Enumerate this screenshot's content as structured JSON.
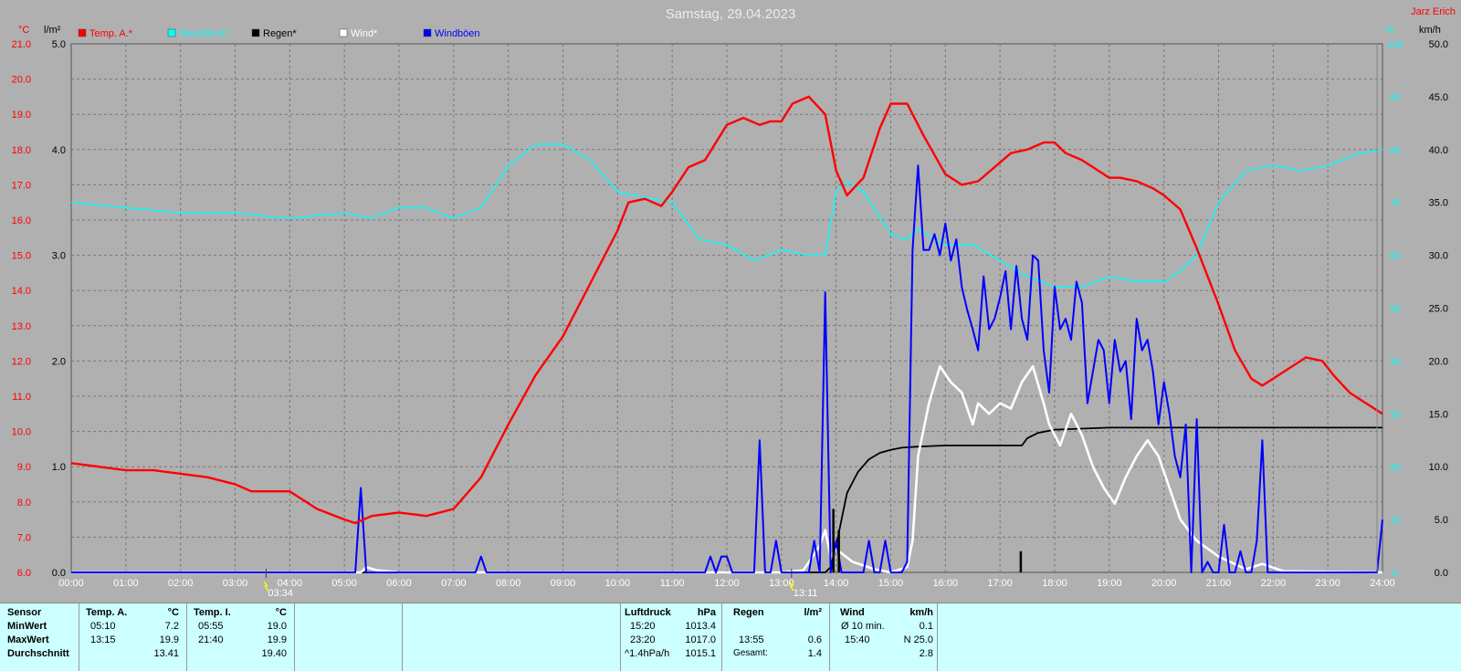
{
  "header": {
    "title": "Samstag, 29.04.2023",
    "author": "Jarz Erich",
    "unit_temp": "°C",
    "unit_rain": "l/m²",
    "unit_hum": "%",
    "unit_wind": "km/h"
  },
  "legend": [
    {
      "label": "Temp. A.*",
      "color": "#ff0000"
    },
    {
      "label": "Feuchte A.*",
      "color": "#00ffff"
    },
    {
      "label": "Regen*",
      "color": "#000000"
    },
    {
      "label": "Wind*",
      "color": "#ffffff"
    },
    {
      "label": "Windböen",
      "color": "#0000ff"
    }
  ],
  "colors": {
    "temp": "#ff0000",
    "hum": "#00ffff",
    "rain": "#000000",
    "wind": "#ffffff",
    "gust": "#0000ff",
    "bg": "#b0b0b0",
    "grid": "#777777"
  },
  "events": [
    {
      "time": "03:34",
      "label": "03:34"
    },
    {
      "time": "13:11",
      "label": "13:11"
    }
  ],
  "chart_data": {
    "type": "line",
    "title": "Samstag, 29.04.2023",
    "xlim": [
      0,
      24
    ],
    "x_ticks": [
      "00:00",
      "01:00",
      "02:00",
      "03:00",
      "04:00",
      "05:00",
      "06:00",
      "07:00",
      "08:00",
      "09:00",
      "10:00",
      "11:00",
      "12:00",
      "13:00",
      "14:00",
      "15:00",
      "16:00",
      "17:00",
      "18:00",
      "19:00",
      "20:00",
      "21:00",
      "22:00",
      "23:00",
      "24:00"
    ],
    "y_temp": {
      "range": [
        6,
        21
      ],
      "ticks": [
        "6.0",
        "7.0",
        "8.0",
        "9.0",
        "10.0",
        "11.0",
        "12.0",
        "13.0",
        "14.0",
        "15.0",
        "16.0",
        "17.0",
        "18.0",
        "19.0",
        "20.0",
        "21.0"
      ]
    },
    "y_rain": {
      "range": [
        0,
        5
      ],
      "ticks": [
        "0.0",
        "1.0",
        "2.0",
        "3.0",
        "4.0",
        "5.0"
      ]
    },
    "y_hum": {
      "range": [
        0,
        100
      ],
      "ticks": [
        "0",
        "10",
        "20",
        "30",
        "40",
        "50",
        "60",
        "70",
        "80",
        "90",
        "100"
      ]
    },
    "y_wind": {
      "range": [
        0,
        50
      ],
      "ticks": [
        "0.0",
        "5.0",
        "10.0",
        "15.0",
        "20.0",
        "25.0",
        "30.0",
        "35.0",
        "40.0",
        "45.0",
        "50.0"
      ]
    },
    "series": [
      {
        "name": "Temp. A.*",
        "axis": "temp",
        "color": "#ff0000",
        "x": [
          0,
          0.5,
          1,
          1.5,
          2,
          2.5,
          3,
          3.3,
          3.6,
          4,
          4.5,
          5,
          5.2,
          5.5,
          6,
          6.5,
          7,
          7.5,
          8,
          8.5,
          9,
          9.5,
          10,
          10.2,
          10.5,
          10.8,
          11,
          11.3,
          11.6,
          12,
          12.3,
          12.6,
          12.8,
          13,
          13.2,
          13.5,
          13.8,
          14,
          14.2,
          14.5,
          14.8,
          15,
          15.3,
          15.6,
          16,
          16.3,
          16.6,
          16.9,
          17.2,
          17.5,
          17.8,
          18,
          18.2,
          18.5,
          18.8,
          19,
          19.2,
          19.5,
          19.8,
          20,
          20.3,
          20.6,
          21,
          21.3,
          21.6,
          21.8,
          22,
          22.3,
          22.6,
          22.9,
          23.1,
          23.4,
          23.7,
          24
        ],
        "values": [
          9.1,
          9.0,
          8.9,
          8.9,
          8.8,
          8.7,
          8.5,
          8.3,
          8.3,
          8.3,
          7.8,
          7.5,
          7.4,
          7.6,
          7.7,
          7.6,
          7.8,
          8.7,
          10.2,
          11.6,
          12.7,
          14.2,
          15.7,
          16.5,
          16.6,
          16.4,
          16.8,
          17.5,
          17.7,
          18.7,
          18.9,
          18.7,
          18.8,
          18.8,
          19.3,
          19.5,
          19.0,
          17.4,
          16.7,
          17.2,
          18.6,
          19.3,
          19.3,
          18.4,
          17.3,
          17.0,
          17.1,
          17.5,
          17.9,
          18.0,
          18.2,
          18.2,
          17.9,
          17.7,
          17.4,
          17.2,
          17.2,
          17.1,
          16.9,
          16.7,
          16.3,
          15.2,
          13.6,
          12.3,
          11.5,
          11.3,
          11.5,
          11.8,
          12.1,
          12.0,
          11.6,
          11.1,
          10.8,
          10.5
        ]
      },
      {
        "name": "Feuchte A.*",
        "axis": "hum",
        "color": "#00ffff",
        "x": [
          0,
          1,
          2,
          3,
          4,
          5,
          5.5,
          6,
          6.5,
          7,
          7.5,
          8,
          8.5,
          9,
          9.5,
          10,
          10.5,
          11,
          11.5,
          12,
          12.5,
          13,
          13.5,
          13.8,
          14,
          14.2,
          14.5,
          15,
          15.3,
          15.5,
          16,
          16.5,
          17,
          17.5,
          18,
          18.5,
          19,
          19.5,
          20,
          20.3,
          20.6,
          21,
          21.5,
          22,
          22.5,
          23,
          23.5,
          24
        ],
        "values": [
          70,
          69,
          68,
          68,
          67,
          68,
          67,
          69,
          69,
          67,
          69,
          77,
          81,
          81,
          78,
          72,
          71,
          70,
          63,
          62,
          59,
          61,
          60,
          60,
          72,
          74,
          72,
          64,
          63,
          65,
          62,
          62,
          59,
          56,
          54,
          54,
          56,
          55,
          55,
          57,
          60,
          70,
          76,
          77,
          76,
          77,
          79,
          80
        ]
      },
      {
        "name": "Regen*",
        "axis": "rain",
        "color": "#000000",
        "x": [
          0,
          13.8,
          13.9,
          14,
          14.1,
          14.2,
          14.4,
          14.6,
          14.8,
          15,
          15.2,
          15.5,
          16,
          16.5,
          17,
          17.4,
          17.5,
          17.7,
          18,
          18.5,
          19,
          19.5,
          20,
          24
        ],
        "values": [
          0,
          0,
          0.05,
          0.25,
          0.5,
          0.75,
          0.95,
          1.07,
          1.13,
          1.16,
          1.18,
          1.19,
          1.2,
          1.2,
          1.2,
          1.2,
          1.27,
          1.32,
          1.35,
          1.36,
          1.37,
          1.37,
          1.37,
          1.37
        ]
      },
      {
        "name": "Wind*",
        "axis": "wind",
        "color": "#ffffff",
        "x": [
          0,
          5.3,
          5.4,
          5.6,
          6,
          13,
          13.4,
          13.7,
          13.8,
          13.9,
          14,
          14.3,
          14.7,
          15,
          15.3,
          15.4,
          15.5,
          15.7,
          15.9,
          16.1,
          16.3,
          16.5,
          16.6,
          16.8,
          17,
          17.2,
          17.4,
          17.6,
          17.8,
          17.9,
          18.1,
          18.3,
          18.5,
          18.7,
          18.9,
          19.1,
          19.3,
          19.5,
          19.7,
          19.9,
          20.1,
          20.3,
          20.6,
          21,
          21.5,
          21.8,
          22.2,
          24
        ],
        "values": [
          0,
          0,
          0.5,
          0.2,
          0,
          0,
          0.2,
          2.5,
          4,
          1.5,
          2.2,
          1.0,
          0.3,
          0,
          0.5,
          3,
          11,
          16,
          19.5,
          18,
          17,
          14,
          16,
          15,
          16,
          15.5,
          18,
          19.5,
          16,
          14,
          12,
          15,
          13,
          10,
          8,
          6.5,
          9,
          11,
          12.5,
          11,
          8,
          5,
          3,
          1.5,
          0.3,
          0.8,
          0.1,
          0
        ]
      },
      {
        "name": "Windböen",
        "axis": "wind",
        "color": "#0000ff",
        "x": [
          0,
          5.2,
          5.3,
          5.4,
          5.5,
          7.4,
          7.5,
          7.6,
          11.6,
          11.7,
          11.8,
          11.9,
          12,
          12.1,
          12.2,
          12.5,
          12.6,
          12.7,
          12.8,
          12.9,
          13,
          13.5,
          13.6,
          13.7,
          13.8,
          13.9,
          14,
          14.1,
          14.2,
          14.5,
          14.6,
          14.7,
          14.8,
          14.9,
          15,
          15.2,
          15.3,
          15.4,
          15.5,
          15.6,
          15.7,
          15.8,
          15.9,
          16,
          16.1,
          16.2,
          16.3,
          16.4,
          16.5,
          16.6,
          16.7,
          16.8,
          16.9,
          17,
          17.1,
          17.2,
          17.3,
          17.4,
          17.5,
          17.6,
          17.7,
          17.8,
          17.9,
          18,
          18.1,
          18.2,
          18.3,
          18.4,
          18.5,
          18.6,
          18.7,
          18.8,
          18.9,
          19,
          19.1,
          19.2,
          19.3,
          19.4,
          19.5,
          19.6,
          19.7,
          19.8,
          19.9,
          20,
          20.1,
          20.2,
          20.3,
          20.4,
          20.5,
          20.6,
          20.7,
          20.8,
          20.9,
          21,
          21.1,
          21.2,
          21.3,
          21.4,
          21.5,
          21.6,
          21.7,
          21.8,
          21.9,
          22,
          23.8,
          23.9,
          24
        ],
        "values": [
          0,
          0,
          8,
          0,
          0,
          0,
          1.5,
          0,
          0,
          1.5,
          0,
          1.5,
          1.5,
          0,
          0,
          0,
          12.5,
          0,
          0,
          3,
          0,
          0,
          3,
          0,
          26.5,
          0,
          3,
          0,
          0,
          0,
          3,
          0,
          0,
          3,
          0,
          0,
          1,
          30.5,
          38.5,
          30.5,
          30.5,
          32,
          30,
          33,
          29.5,
          31.5,
          27,
          24.8,
          23,
          21,
          28,
          23,
          24,
          26,
          28.5,
          23,
          29,
          24,
          22,
          30,
          29.5,
          21,
          17,
          27,
          23,
          24,
          22,
          27.5,
          25.5,
          16,
          19,
          22,
          21,
          16,
          22,
          19,
          20,
          14.5,
          24,
          21,
          22,
          19,
          14,
          18,
          15,
          11,
          9,
          14,
          0,
          14.5,
          0,
          1,
          0,
          0,
          4.5,
          0,
          0,
          2,
          0,
          0,
          3,
          12.5,
          0,
          0,
          0,
          0,
          5
        ]
      }
    ]
  },
  "stats": {
    "sensor": {
      "header": "Sensor",
      "rows": [
        "MinWert",
        "MaxWert",
        "Durchschnitt"
      ]
    },
    "temp_a": {
      "header": "Temp. A.",
      "unit": "°C",
      "rows": [
        {
          "t": "05:10",
          "v": "7.2"
        },
        {
          "t": "13:15",
          "v": "19.9"
        },
        {
          "t": "",
          "v": "13.41"
        }
      ]
    },
    "temp_i": {
      "header": "Temp. I.",
      "unit": "°C",
      "rows": [
        {
          "t": "05:55",
          "v": "19.0"
        },
        {
          "t": "21:40",
          "v": "19.9"
        },
        {
          "t": "",
          "v": "19.40"
        }
      ]
    },
    "pressure": {
      "header": "Luftdruck",
      "unit": "hPa",
      "rows": [
        {
          "t": "15:20",
          "v": "1013.4"
        },
        {
          "t": "23:20",
          "v": "1017.0"
        },
        {
          "t": "^1.4hPa/h",
          "v": "1015.1"
        }
      ]
    },
    "rain": {
      "header": "Regen",
      "unit": "l/m²",
      "rows": [
        {
          "t": "",
          "v": ""
        },
        {
          "t": "13:55",
          "v": "0.6"
        },
        {
          "t": "Gesamt:",
          "v": "1.4"
        }
      ]
    },
    "wind": {
      "header": "Wind",
      "unit": "km/h",
      "rows": [
        {
          "t": "Ø 10 min.",
          "v": "0.1"
        },
        {
          "t": "15:40",
          "v": "N 25.0"
        },
        {
          "t": "",
          "v": "2.8"
        }
      ]
    }
  }
}
